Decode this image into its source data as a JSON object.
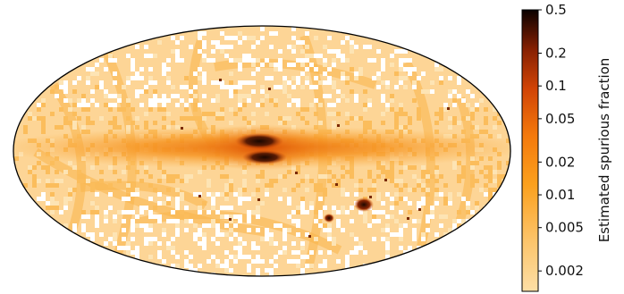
{
  "chart_data": {
    "type": "heatmap",
    "projection": "mollweide",
    "scale": "log",
    "colormap": "afmhot_r",
    "colorbar": {
      "label": "Estimated spurious fraction",
      "range": [
        0.0013,
        0.5
      ],
      "ticks": [
        {
          "value": 0.5,
          "label": "0.5"
        },
        {
          "value": 0.2,
          "label": "0.2"
        },
        {
          "value": 0.1,
          "label": "0.1"
        },
        {
          "value": 0.05,
          "label": "0.05"
        },
        {
          "value": 0.02,
          "label": "0.02"
        },
        {
          "value": 0.01,
          "label": "0.01"
        },
        {
          "value": 0.005,
          "label": "0.005"
        },
        {
          "value": 0.002,
          "label": "0.002"
        }
      ]
    },
    "features": [
      {
        "region": "galactic plane band",
        "fraction": 0.02
      },
      {
        "region": "galactic centre (upper lobe)",
        "fraction": 0.3
      },
      {
        "region": "galactic centre (lower lobe)",
        "fraction": 0.3
      },
      {
        "region": "Large Magellanic Cloud",
        "fraction": 0.15
      },
      {
        "region": "Small Magellanic Cloud",
        "fraction": 0.2
      },
      {
        "region": "scanning-law stripes",
        "fraction": 0.006
      },
      {
        "region": "high-latitude background",
        "fraction": 0.003
      }
    ]
  }
}
